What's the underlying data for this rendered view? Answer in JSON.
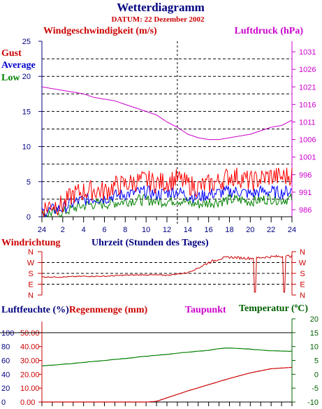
{
  "title": "Wetterdiagramm",
  "subtitle": "DATUM: 22 Dezember 2002",
  "chart_data": [
    {
      "type": "line",
      "left_axis_label": "Windgeschwindigkeit (m/s)",
      "right_axis_label": "Luftdruck (hPa)",
      "xlabel": "Uhrzeit (Stunden des Tages)",
      "x_ticks": [
        "24",
        "2",
        "4",
        "6",
        "8",
        "10",
        "12",
        "14",
        "16",
        "18",
        "20",
        "22",
        "24"
      ],
      "y_left_ticks": [
        "0",
        "5",
        "10",
        "15",
        "20",
        "25"
      ],
      "y_right_ticks": [
        "986",
        "991",
        "996",
        "1001",
        "1006",
        "1011",
        "1016",
        "1021",
        "1026",
        "1031"
      ],
      "ylim_left": [
        0,
        25
      ],
      "ylim_right": [
        984,
        1034
      ],
      "xlim": [
        0,
        24
      ],
      "marker_hour": 13,
      "series": [
        {
          "name": "Gust",
          "color": "#ff0000",
          "axis": "left",
          "x": [
            0,
            1,
            2,
            3,
            4,
            5,
            6,
            7,
            8,
            9,
            10,
            11,
            12,
            13,
            14,
            15,
            16,
            17,
            18,
            19,
            20,
            21,
            22,
            23,
            24
          ],
          "values": [
            1.0,
            1.8,
            1.6,
            3.2,
            3.6,
            3.8,
            3.6,
            4.4,
            4.6,
            5.0,
            5.2,
            4.8,
            5.0,
            5.4,
            4.6,
            4.2,
            4.6,
            5.0,
            5.8,
            5.6,
            5.0,
            5.4,
            5.8,
            5.6,
            6.0
          ]
        },
        {
          "name": "Average",
          "color": "#0000ff",
          "axis": "left",
          "x": [
            0,
            1,
            2,
            3,
            4,
            5,
            6,
            7,
            8,
            9,
            10,
            11,
            12,
            13,
            14,
            15,
            16,
            17,
            18,
            19,
            20,
            21,
            22,
            23,
            24
          ],
          "values": [
            0.6,
            1.0,
            1.2,
            2.0,
            2.4,
            2.6,
            2.6,
            3.0,
            3.2,
            3.4,
            3.6,
            3.2,
            3.4,
            3.6,
            3.0,
            2.8,
            3.2,
            3.4,
            3.6,
            3.6,
            3.2,
            3.6,
            3.6,
            3.4,
            3.8
          ]
        },
        {
          "name": "Low",
          "color": "#008000",
          "axis": "left",
          "x": [
            0,
            1,
            2,
            3,
            4,
            5,
            6,
            7,
            8,
            9,
            10,
            11,
            12,
            13,
            14,
            15,
            16,
            17,
            18,
            19,
            20,
            21,
            22,
            23,
            24
          ],
          "values": [
            0.2,
            0.6,
            0.6,
            1.2,
            1.6,
            1.8,
            1.8,
            2.0,
            2.2,
            2.4,
            2.4,
            2.2,
            2.2,
            2.4,
            2.0,
            1.8,
            2.0,
            2.2,
            2.4,
            2.4,
            2.2,
            2.4,
            2.6,
            2.4,
            2.6
          ]
        },
        {
          "name": "Luftdruck",
          "color": "#cc00cc",
          "axis": "right",
          "x": [
            0,
            1,
            2,
            3,
            4,
            5,
            6,
            7,
            8,
            9,
            10,
            11,
            12,
            13,
            14,
            15,
            16,
            17,
            18,
            19,
            20,
            21,
            22,
            23,
            24
          ],
          "values": [
            1021,
            1020.5,
            1020,
            1019.5,
            1019,
            1018,
            1017.5,
            1017,
            1016,
            1015,
            1014,
            1013,
            1011,
            1009.5,
            1007.5,
            1006.5,
            1006,
            1006,
            1006.5,
            1007,
            1007.5,
            1008.5,
            1009.5,
            1010,
            1011.5
          ]
        }
      ]
    },
    {
      "type": "line",
      "left_axis_label": "Windrichtung",
      "y_ticks": [
        "N",
        "W",
        "S",
        "E",
        "N"
      ],
      "xlim": [
        0,
        24
      ],
      "series": [
        {
          "name": "Windrichtung",
          "color": "#cc0000",
          "x": [
            0,
            2,
            4,
            6,
            8,
            10,
            12,
            13,
            14,
            15,
            16,
            17,
            18,
            19,
            20,
            21,
            22,
            23,
            24
          ],
          "values": [
            50,
            50,
            52,
            52,
            55,
            56,
            55,
            58,
            62,
            75,
            90,
            100,
            105,
            103,
            102,
            104,
            106,
            107,
            108
          ]
        }
      ]
    },
    {
      "type": "line",
      "left_axis_label": "Luftfeuchte (%)",
      "left_axis_label2": "Regenmenge (mm)",
      "right_axis_label": "Temperatur (",
      "right_axis_label_unit": "C)",
      "middle_label": "Taupunkt",
      "y_left_ticks_outer": [
        "0",
        "20",
        "40",
        "60",
        "80",
        "100"
      ],
      "y_left_ticks_inner": [
        "0.00",
        "10.00",
        "20.00",
        "30.00",
        "40.00",
        "50.00"
      ],
      "y_right_ticks": [
        "-10",
        "-5",
        "0",
        "5",
        "10",
        "15",
        "20"
      ],
      "xlim": [
        0,
        24
      ],
      "series": [
        {
          "name": "Temperatur",
          "color": "#008000",
          "axis": "right",
          "x": [
            0,
            2,
            4,
            6,
            8,
            10,
            12,
            14,
            16,
            17,
            18,
            19,
            20,
            22,
            24
          ],
          "values": [
            3.0,
            3.6,
            4.3,
            5.0,
            5.7,
            6.5,
            7.2,
            8.0,
            8.6,
            9.3,
            9.5,
            9.3,
            9.0,
            8.5,
            8.3
          ]
        },
        {
          "name": "Regenmenge",
          "color": "#cc0000",
          "axis": "left_inner",
          "x": [
            0,
            10,
            11,
            12,
            14,
            16,
            18,
            20,
            22,
            24
          ],
          "values": [
            0,
            0,
            0.5,
            3.0,
            8.0,
            12.5,
            17.0,
            21.0,
            24.0,
            25.0
          ]
        }
      ]
    }
  ]
}
